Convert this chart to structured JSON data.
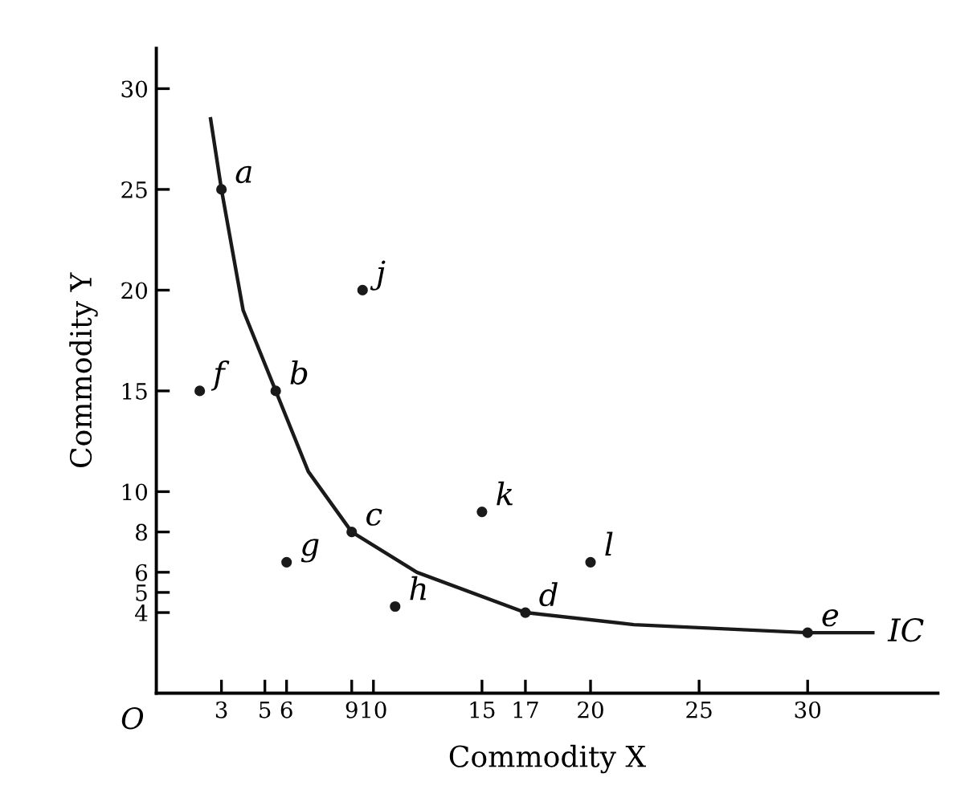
{
  "chart_data": {
    "type": "line",
    "xlabel": "Commodity X",
    "ylabel": "Commodity Y",
    "xlim": [
      0,
      36
    ],
    "ylim": [
      0,
      32
    ],
    "xticks": [
      3,
      5,
      6,
      9,
      10,
      15,
      17,
      20,
      25,
      30
    ],
    "yticks": [
      4,
      5,
      6,
      8,
      10,
      15,
      20,
      25,
      30
    ],
    "grid": false,
    "legend": false,
    "series": [
      {
        "name": "IC",
        "color": "#1a1a1a",
        "marker": "none",
        "x": [
          2.5,
          3,
          4,
          5.5,
          7,
          9,
          12,
          17,
          22,
          30,
          33
        ],
        "values": [
          28.5,
          25,
          19,
          15,
          11,
          8,
          6,
          4,
          3.4,
          3,
          3
        ]
      },
      {
        "type": "scatter",
        "color": "#1a1a1a",
        "marker": "circle",
        "x": [
          3,
          5.5,
          9,
          17,
          30,
          2,
          6,
          11,
          9.5,
          15,
          20
        ],
        "values": [
          25,
          15,
          8,
          4,
          3,
          15,
          6.5,
          4.3,
          20,
          9,
          6.5
        ]
      }
    ],
    "annotations": [
      {
        "text": "a",
        "x": 3,
        "y": 25
      },
      {
        "text": "b",
        "x": 5.5,
        "y": 15
      },
      {
        "text": "c",
        "x": 9,
        "y": 8
      },
      {
        "text": "d",
        "x": 17,
        "y": 4
      },
      {
        "text": "e",
        "x": 30,
        "y": 3
      },
      {
        "text": "f",
        "x": 2,
        "y": 15
      },
      {
        "text": "g",
        "x": 6,
        "y": 6.5
      },
      {
        "text": "h",
        "x": 11,
        "y": 4.3
      },
      {
        "text": "j",
        "x": 9.5,
        "y": 20
      },
      {
        "text": "k",
        "x": 15,
        "y": 9
      },
      {
        "text": "l",
        "x": 20,
        "y": 6.5
      },
      "O"
    ]
  }
}
